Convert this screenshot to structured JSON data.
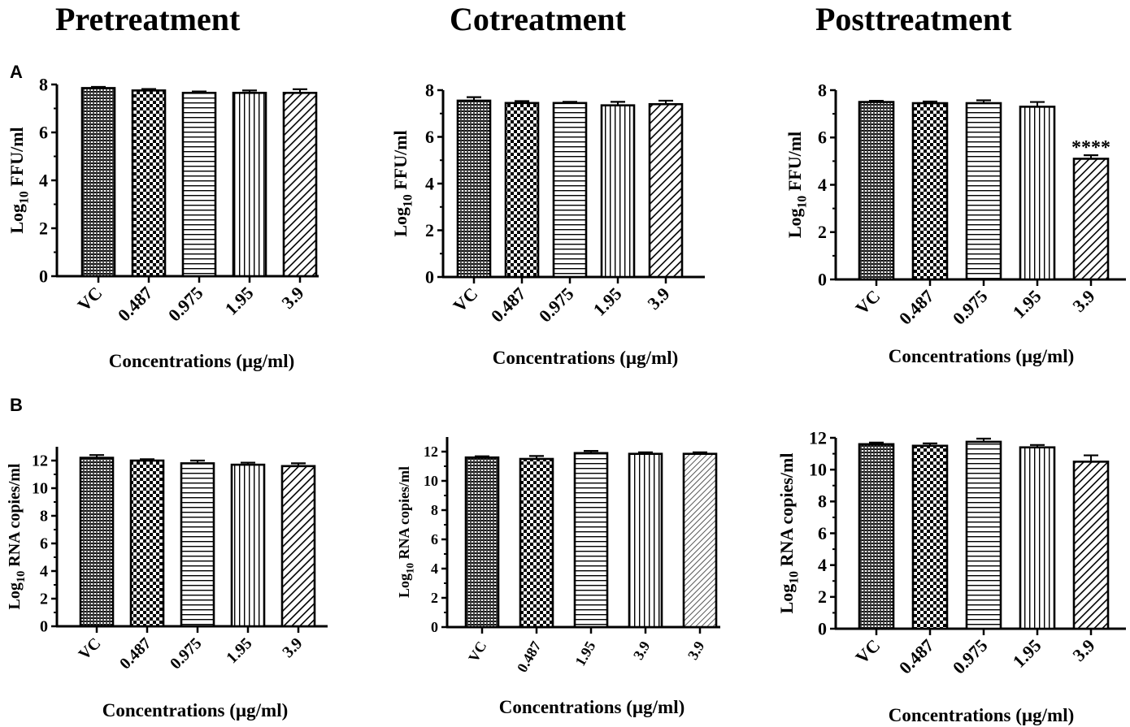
{
  "column_titles": [
    "Pretreatment",
    "Cotreatment",
    "Posttreatment"
  ],
  "row_labels": [
    "A",
    "B"
  ],
  "chart_data": [
    {
      "type": "bar",
      "panel": "A-pretreatment",
      "title": "",
      "ylabel_main": "Log",
      "ylabel_sub": "10",
      "ylabel_tail": " FFU/ml",
      "xlabel": "Concentrations (µg/ml)",
      "categories": [
        "VC",
        "0.487",
        "0.975",
        "1.95",
        "3.9"
      ],
      "values": [
        7.85,
        7.75,
        7.65,
        7.65,
        7.65
      ],
      "errors": [
        0.05,
        0.06,
        0.06,
        0.1,
        0.15
      ],
      "ylim": [
        0,
        8
      ],
      "yticks": [
        "0",
        "2",
        "4",
        "6",
        "8"
      ],
      "patterns": [
        "grid",
        "checker",
        "hlines",
        "vlines",
        "diag"
      ],
      "annotations": [
        "",
        "",
        "",
        "",
        ""
      ]
    },
    {
      "type": "bar",
      "panel": "A-cotreatment",
      "title": "",
      "ylabel_main": "Log",
      "ylabel_sub": "10",
      "ylabel_tail": " FFU/ml",
      "xlabel": "Concentrations (µg/ml)",
      "categories": [
        "VC",
        "0.487",
        "0.975",
        "1.95",
        "3.9"
      ],
      "values": [
        7.55,
        7.45,
        7.45,
        7.35,
        7.4
      ],
      "errors": [
        0.15,
        0.08,
        0.05,
        0.15,
        0.15
      ],
      "ylim": [
        0,
        8
      ],
      "yticks": [
        "0",
        "2",
        "4",
        "6",
        "8"
      ],
      "patterns": [
        "grid",
        "checker",
        "hlines",
        "vlines",
        "diag"
      ],
      "annotations": [
        "",
        "",
        "",
        "",
        ""
      ]
    },
    {
      "type": "bar",
      "panel": "A-posttreatment",
      "title": "",
      "ylabel_main": "Log",
      "ylabel_sub": "10",
      "ylabel_tail": " FFU/ml",
      "xlabel": "Concentrations (µg/ml)",
      "categories": [
        "VC",
        "0.487",
        "0.975",
        "1.95",
        "3.9"
      ],
      "values": [
        7.5,
        7.45,
        7.45,
        7.3,
        5.1
      ],
      "errors": [
        0.05,
        0.07,
        0.12,
        0.2,
        0.15
      ],
      "ylim": [
        0,
        8
      ],
      "yticks": [
        "0",
        "2",
        "4",
        "6",
        "8"
      ],
      "patterns": [
        "grid",
        "checker",
        "hlines",
        "vlines",
        "diag"
      ],
      "annotations": [
        "",
        "",
        "",
        "",
        "****"
      ]
    },
    {
      "type": "bar",
      "panel": "B-pretreatment",
      "title": "",
      "ylabel_main": "Log",
      "ylabel_sub": "10",
      "ylabel_tail": " RNA copies/ml",
      "xlabel": "Concentrations (µg/ml)",
      "categories": [
        "VC",
        "0.487",
        "0.975",
        "1.95",
        "3.9"
      ],
      "values": [
        12.2,
        12.0,
        11.8,
        11.7,
        11.6
      ],
      "errors": [
        0.2,
        0.1,
        0.2,
        0.15,
        0.2
      ],
      "ylim": [
        0,
        13
      ],
      "yticks": [
        "0",
        "2",
        "4",
        "6",
        "8",
        "10",
        "12"
      ],
      "patterns": [
        "grid",
        "checker",
        "hlines",
        "vlines",
        "diag"
      ],
      "annotations": [
        "",
        "",
        "",
        "",
        ""
      ]
    },
    {
      "type": "bar",
      "panel": "B-cotreatment",
      "title": "",
      "ylabel_main": "Log",
      "ylabel_sub": "10",
      "ylabel_tail": " RNA copies/ml",
      "xlabel": "Concentrations (µg/ml)",
      "categories": [
        "VC",
        "0.487",
        "1.95",
        "3.9",
        "3.9"
      ],
      "values": [
        11.6,
        11.5,
        11.9,
        11.85,
        11.85
      ],
      "errors": [
        0.08,
        0.2,
        0.15,
        0.1,
        0.1
      ],
      "ylim": [
        0,
        13
      ],
      "yticks": [
        "0",
        "2",
        "4",
        "6",
        "8",
        "10",
        "12"
      ],
      "patterns": [
        "grid",
        "checker",
        "hlines",
        "vlines",
        "diagfine"
      ],
      "annotations": [
        "",
        "",
        "",
        "",
        ""
      ]
    },
    {
      "type": "bar",
      "panel": "B-posttreatment",
      "title": "",
      "ylabel_main": "Log",
      "ylabel_sub": "10",
      "ylabel_tail": " RNA copies/ml",
      "xlabel": "Concentrations (µg/ml)",
      "categories": [
        "VC",
        "0.487",
        "0.975",
        "1.95",
        "3.9"
      ],
      "values": [
        11.6,
        11.5,
        11.75,
        11.4,
        10.5
      ],
      "errors": [
        0.1,
        0.15,
        0.2,
        0.15,
        0.4
      ],
      "ylim": [
        0,
        12
      ],
      "yticks": [
        "0",
        "2",
        "4",
        "6",
        "8",
        "10",
        "12"
      ],
      "patterns": [
        "grid",
        "checker",
        "hlines",
        "vlines",
        "diag"
      ],
      "annotations": [
        "",
        "",
        "",
        "",
        ""
      ]
    }
  ]
}
